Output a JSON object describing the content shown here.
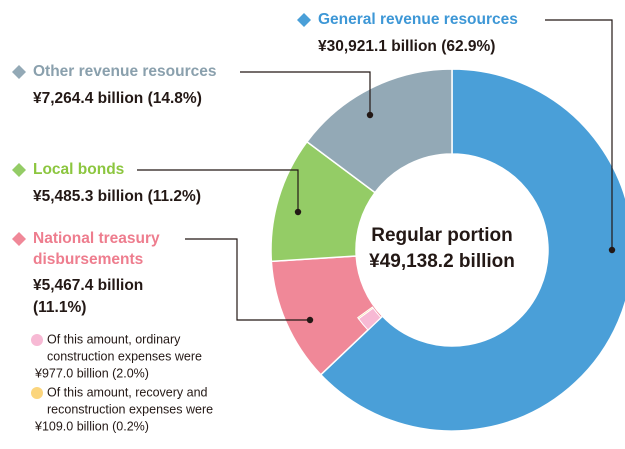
{
  "chart_data": {
    "type": "donut",
    "center_text": [
      "Regular portion",
      "¥49,138.2 billion"
    ],
    "categories": [
      [
        "General revenue resources"
      ],
      [
        "National treasury",
        "disbursements"
      ],
      [
        "Local bonds"
      ],
      [
        "Other revenue resources"
      ]
    ],
    "values": [
      62.9,
      11.1,
      11.2,
      14.8
    ],
    "value_labels": [
      [
        "¥30,921.1 billion (62.9%)"
      ],
      [
        "¥5,467.4 billion",
        "(11.1%)"
      ],
      [
        "¥5,485.3 billion (11.2%)"
      ],
      [
        "¥7,264.4 billion (14.8%)"
      ]
    ],
    "colors": [
      "#4a9fd8",
      "#f08898",
      "#94cc66",
      "#93a9b6"
    ],
    "label_colors": [
      "#3d97d6",
      "#ee7d8e",
      "#8cc63f",
      "#8aa0ad"
    ],
    "sub_items": [
      {
        "lines": [
          "Of this amount, ordinary",
          "construction expenses were",
          "¥977.0 billion (2.0%)"
        ],
        "value": 2.0,
        "color": "#f7b9d4"
      },
      {
        "lines": [
          "Of this amount, recovery and",
          "reconstruction expenses were",
          "¥109.0 billion (0.2%)"
        ],
        "value": 0.2,
        "color": "#fbd57d"
      }
    ]
  }
}
